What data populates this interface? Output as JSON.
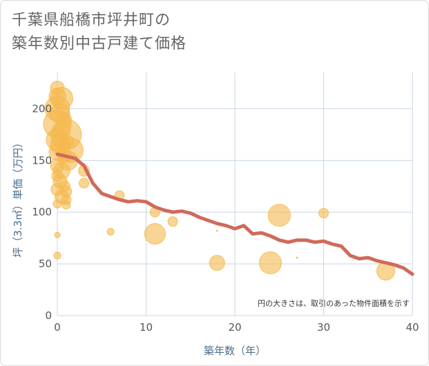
{
  "title_lines": [
    "千葉県船橋市坪井町の",
    "築年数別中古戸建て価格"
  ],
  "chart_data": {
    "type": "scatter",
    "xlabel": "築年数（年）",
    "ylabel": "坪（3.3㎡）単価（万円）",
    "xlim": [
      0,
      40
    ],
    "ylim": [
      0,
      235
    ],
    "x_ticks": [
      0,
      10,
      20,
      30,
      40
    ],
    "y_ticks": [
      0,
      50,
      100,
      150,
      200
    ],
    "grid": true,
    "note": "円の大きさは、取引のあった物件面積を示す",
    "colors": {
      "bubble": "#f5b94e",
      "line": "#d06a5a",
      "grid": "#c9d6e3"
    },
    "bubbles": [
      {
        "x": 0,
        "y": 220,
        "r": 10
      },
      {
        "x": 0,
        "y": 212,
        "r": 12
      },
      {
        "x": 0.5,
        "y": 210,
        "r": 16
      },
      {
        "x": 0,
        "y": 200,
        "r": 18
      },
      {
        "x": 0.3,
        "y": 195,
        "r": 14
      },
      {
        "x": 0.8,
        "y": 190,
        "r": 10
      },
      {
        "x": 0,
        "y": 185,
        "r": 20
      },
      {
        "x": 0.5,
        "y": 178,
        "r": 12
      },
      {
        "x": 1,
        "y": 175,
        "r": 22
      },
      {
        "x": 0,
        "y": 170,
        "r": 16
      },
      {
        "x": 0.3,
        "y": 165,
        "r": 14
      },
      {
        "x": 1,
        "y": 168,
        "r": 10
      },
      {
        "x": 1.5,
        "y": 160,
        "r": 18
      },
      {
        "x": 0,
        "y": 158,
        "r": 12
      },
      {
        "x": 0.8,
        "y": 155,
        "r": 10
      },
      {
        "x": 1.2,
        "y": 150,
        "r": 14
      },
      {
        "x": 0,
        "y": 145,
        "r": 10
      },
      {
        "x": 0.5,
        "y": 140,
        "r": 12
      },
      {
        "x": 0,
        "y": 135,
        "r": 8
      },
      {
        "x": 0.3,
        "y": 130,
        "r": 10
      },
      {
        "x": 0.8,
        "y": 125,
        "r": 8
      },
      {
        "x": 0,
        "y": 122,
        "r": 9
      },
      {
        "x": 1,
        "y": 120,
        "r": 8
      },
      {
        "x": 0.5,
        "y": 115,
        "r": 10
      },
      {
        "x": 1,
        "y": 112,
        "r": 7
      },
      {
        "x": 0,
        "y": 108,
        "r": 6
      },
      {
        "x": 1,
        "y": 107,
        "r": 6
      },
      {
        "x": 3,
        "y": 140,
        "r": 8
      },
      {
        "x": 3,
        "y": 128,
        "r": 7
      },
      {
        "x": 0,
        "y": 78,
        "r": 4
      },
      {
        "x": 0,
        "y": 58,
        "r": 5
      },
      {
        "x": 6,
        "y": 81,
        "r": 5
      },
      {
        "x": 7,
        "y": 116,
        "r": 7
      },
      {
        "x": 11,
        "y": 79,
        "r": 15
      },
      {
        "x": 11,
        "y": 100,
        "r": 7
      },
      {
        "x": 13,
        "y": 91,
        "r": 7
      },
      {
        "x": 18,
        "y": 51,
        "r": 11
      },
      {
        "x": 18,
        "y": 82,
        "r": 1
      },
      {
        "x": 24,
        "y": 51,
        "r": 16
      },
      {
        "x": 25,
        "y": 97,
        "r": 16
      },
      {
        "x": 27,
        "y": 56,
        "r": 1
      },
      {
        "x": 30,
        "y": 99,
        "r": 7
      },
      {
        "x": 37,
        "y": 43,
        "r": 13
      }
    ],
    "trend": {
      "x": [
        0,
        1,
        2,
        3,
        4,
        5,
        6,
        7,
        8,
        9,
        10,
        11,
        12,
        13,
        14,
        15,
        16,
        17,
        18,
        19,
        20,
        21,
        22,
        23,
        24,
        25,
        26,
        27,
        28,
        29,
        30,
        31,
        32,
        33,
        34,
        35,
        36,
        37,
        38,
        39,
        40
      ],
      "y": [
        156,
        154,
        152,
        145,
        128,
        118,
        115,
        112,
        110,
        111,
        110,
        105,
        102,
        100,
        101,
        99,
        95,
        92,
        89,
        87,
        84,
        87,
        79,
        80,
        77,
        73,
        71,
        73,
        73,
        71,
        72,
        69,
        67,
        58,
        55,
        56,
        53,
        51,
        49,
        46,
        40
      ]
    }
  }
}
